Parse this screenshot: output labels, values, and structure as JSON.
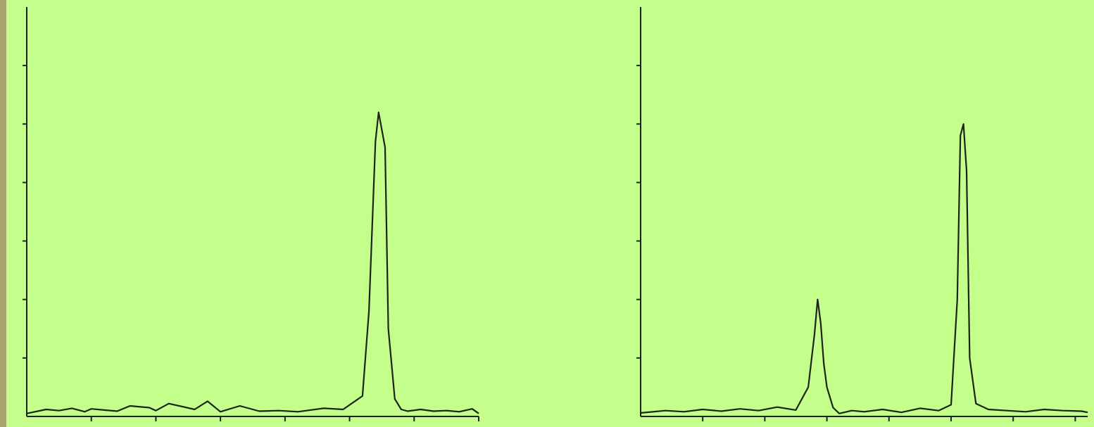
{
  "colors": {
    "background": "#c4ff8c",
    "left_border": "#a8a36a",
    "line": "#1c2418"
  },
  "chart_data": [
    {
      "type": "line",
      "title": "",
      "xlabel": "",
      "ylabel": "",
      "xlim": [
        0,
        7
      ],
      "ylim": [
        0,
        7
      ],
      "x_ticks": [
        1,
        2,
        3,
        4,
        5,
        6,
        7
      ],
      "y_ticks": [
        1,
        2,
        3,
        4,
        5,
        6
      ],
      "tick_labels_shown": false,
      "grid": false,
      "series": [
        {
          "x": [
            0,
            0.3,
            0.5,
            0.7,
            0.9,
            1.0,
            1.2,
            1.4,
            1.6,
            1.9,
            2.0,
            2.2,
            2.6,
            2.8,
            3.0,
            3.3,
            3.6,
            3.9,
            4.2,
            4.6,
            4.9,
            5.2,
            5.3,
            5.4,
            5.45,
            5.5,
            5.55,
            5.6,
            5.7,
            5.8,
            5.9,
            6.1,
            6.3,
            6.5,
            6.7,
            6.9,
            7.0
          ],
          "y": [
            0.05,
            0.12,
            0.1,
            0.14,
            0.08,
            0.13,
            0.11,
            0.09,
            0.18,
            0.15,
            0.1,
            0.22,
            0.12,
            0.26,
            0.08,
            0.18,
            0.09,
            0.1,
            0.08,
            0.14,
            0.12,
            0.35,
            1.8,
            4.7,
            5.2,
            4.9,
            4.6,
            1.5,
            0.3,
            0.12,
            0.09,
            0.12,
            0.09,
            0.1,
            0.08,
            0.13,
            0.05
          ]
        }
      ]
    },
    {
      "type": "line",
      "title": "",
      "xlabel": "",
      "ylabel": "",
      "xlim": [
        0,
        7.2
      ],
      "ylim": [
        0,
        7
      ],
      "x_ticks": [
        1,
        2,
        3,
        4,
        5,
        6,
        7
      ],
      "y_ticks": [
        1,
        2,
        3,
        4,
        5,
        6
      ],
      "tick_labels_shown": false,
      "grid": false,
      "series": [
        {
          "x": [
            0,
            0.4,
            0.7,
            1.0,
            1.3,
            1.6,
            1.9,
            2.2,
            2.5,
            2.7,
            2.8,
            2.85,
            2.9,
            2.95,
            3.0,
            3.1,
            3.2,
            3.4,
            3.6,
            3.9,
            4.2,
            4.5,
            4.8,
            5.0,
            5.1,
            5.15,
            5.2,
            5.25,
            5.3,
            5.4,
            5.6,
            5.9,
            6.2,
            6.5,
            6.8,
            7.1,
            7.2
          ],
          "y": [
            0.06,
            0.1,
            0.08,
            0.12,
            0.09,
            0.13,
            0.1,
            0.16,
            0.11,
            0.5,
            1.4,
            2.0,
            1.6,
            0.9,
            0.5,
            0.15,
            0.05,
            0.1,
            0.08,
            0.12,
            0.07,
            0.14,
            0.1,
            0.2,
            2.0,
            4.8,
            5.0,
            4.2,
            1.0,
            0.22,
            0.12,
            0.1,
            0.08,
            0.12,
            0.1,
            0.09,
            0.07
          ]
        }
      ]
    }
  ]
}
